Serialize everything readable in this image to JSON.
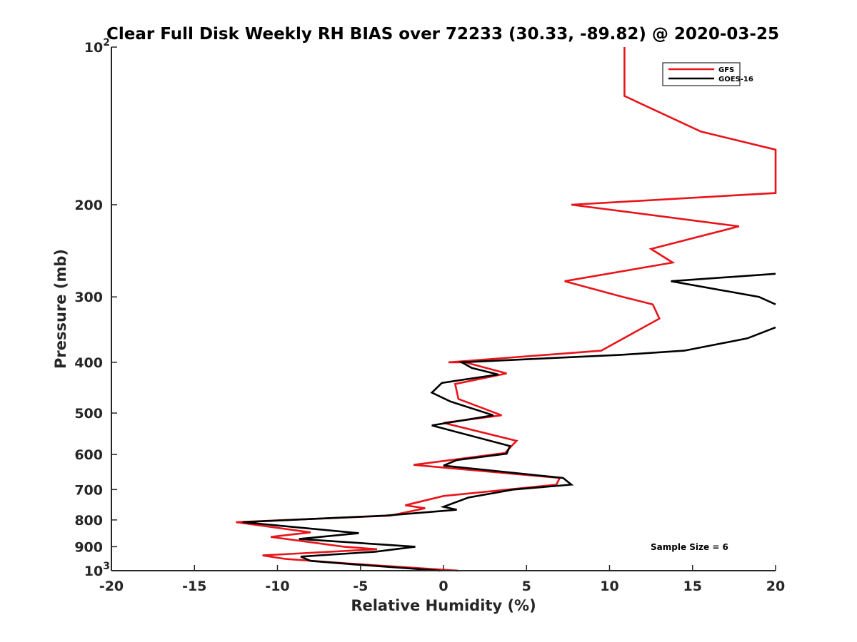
{
  "chart_data": {
    "type": "line",
    "title": "Clear Full Disk Weekly RH BIAS over 72233 (30.33, -89.82) @ 2020-03-25",
    "xlabel": "Relative Humidity (%)",
    "ylabel": "Pressure (mb)",
    "xlim": [
      -20,
      20
    ],
    "ylim": [
      100,
      1000
    ],
    "y_scale": "log",
    "y_reversed": true,
    "x_ticks": [
      "-20",
      "-15",
      "-10",
      "-5",
      "0",
      "5",
      "10",
      "15",
      "20"
    ],
    "y_ticks": [
      {
        "value": 100,
        "label": "10",
        "sup": "2"
      },
      {
        "value": 200,
        "label": "200",
        "sup": ""
      },
      {
        "value": 300,
        "label": "300",
        "sup": ""
      },
      {
        "value": 400,
        "label": "400",
        "sup": ""
      },
      {
        "value": 500,
        "label": "500",
        "sup": ""
      },
      {
        "value": 600,
        "label": "600",
        "sup": ""
      },
      {
        "value": 700,
        "label": "700",
        "sup": ""
      },
      {
        "value": 800,
        "label": "800",
        "sup": ""
      },
      {
        "value": 900,
        "label": "900",
        "sup": ""
      },
      {
        "value": 1000,
        "label": "10",
        "sup": "3"
      }
    ],
    "legend_position": "top-right",
    "grid": false,
    "annotation": "Sample Size = 6",
    "series": [
      {
        "name": "GFS",
        "color": "#e8141a",
        "points": [
          {
            "x": 0.9,
            "y": 1000
          },
          {
            "x": -5.5,
            "y": 970
          },
          {
            "x": -9.5,
            "y": 950
          },
          {
            "x": -10.9,
            "y": 935
          },
          {
            "x": -4,
            "y": 910
          },
          {
            "x": -6,
            "y": 900
          },
          {
            "x": -10.4,
            "y": 862
          },
          {
            "x": -8,
            "y": 845
          },
          {
            "x": -12.5,
            "y": 808
          },
          {
            "x": -3.2,
            "y": 785
          },
          {
            "x": -1.1,
            "y": 760
          },
          {
            "x": -2.3,
            "y": 750
          },
          {
            "x": 0,
            "y": 720
          },
          {
            "x": 6.8,
            "y": 685
          },
          {
            "x": 7,
            "y": 665
          },
          {
            "x": -1.8,
            "y": 628
          },
          {
            "x": 3.7,
            "y": 596
          },
          {
            "x": 4.4,
            "y": 565
          },
          {
            "x": 0,
            "y": 522
          },
          {
            "x": 3.5,
            "y": 505
          },
          {
            "x": 0.9,
            "y": 470
          },
          {
            "x": 0.7,
            "y": 440
          },
          {
            "x": 3.8,
            "y": 420
          },
          {
            "x": 1.3,
            "y": 400
          },
          {
            "x": 0.3,
            "y": 400
          },
          {
            "x": 9.5,
            "y": 380
          },
          {
            "x": 13,
            "y": 330
          },
          {
            "x": 12.6,
            "y": 310
          },
          {
            "x": 10.8,
            "y": 300
          },
          {
            "x": 7.3,
            "y": 280
          },
          {
            "x": 13.8,
            "y": 258
          },
          {
            "x": 12.5,
            "y": 243
          },
          {
            "x": 17.8,
            "y": 220
          },
          {
            "x": 7.7,
            "y": 200
          },
          {
            "x": 20,
            "y": 190
          },
          {
            "x": 20,
            "y": 157
          },
          {
            "x": 15.5,
            "y": 145
          },
          {
            "x": 10.9,
            "y": 124
          },
          {
            "x": 10.9,
            "y": 100
          }
        ]
      },
      {
        "name": "GOES-16",
        "color": "#000000",
        "points": [
          {
            "x": -0.2,
            "y": 1000
          },
          {
            "x": -5,
            "y": 975
          },
          {
            "x": -8,
            "y": 958
          },
          {
            "x": -8.6,
            "y": 940
          },
          {
            "x": -4.1,
            "y": 920
          },
          {
            "x": -1.7,
            "y": 900
          },
          {
            "x": -8.7,
            "y": 870
          },
          {
            "x": -5.1,
            "y": 848
          },
          {
            "x": -12.1,
            "y": 808
          },
          {
            "x": -3.5,
            "y": 785
          },
          {
            "x": 0.8,
            "y": 765
          },
          {
            "x": 0,
            "y": 755
          },
          {
            "x": 1.5,
            "y": 725
          },
          {
            "x": 4.2,
            "y": 700
          },
          {
            "x": 7.7,
            "y": 685
          },
          {
            "x": 7.2,
            "y": 665
          },
          {
            "x": 0,
            "y": 630
          },
          {
            "x": 0.8,
            "y": 615
          },
          {
            "x": 3.8,
            "y": 598
          },
          {
            "x": 4,
            "y": 578
          },
          {
            "x": -0.7,
            "y": 528
          },
          {
            "x": 3,
            "y": 505
          },
          {
            "x": 0.4,
            "y": 475
          },
          {
            "x": -0.7,
            "y": 457
          },
          {
            "x": -0.1,
            "y": 438
          },
          {
            "x": 3.3,
            "y": 422
          },
          {
            "x": 1.7,
            "y": 410
          },
          {
            "x": 1.1,
            "y": 400
          },
          {
            "x": 10.7,
            "y": 387
          },
          {
            "x": 14.5,
            "y": 380
          },
          {
            "x": 18.3,
            "y": 360
          },
          {
            "x": 20,
            "y": 343
          },
          {
            "x": null,
            "y": null
          },
          {
            "x": 20,
            "y": 310
          },
          {
            "x": 19,
            "y": 300
          },
          {
            "x": 13.7,
            "y": 280
          },
          {
            "x": 20,
            "y": 271
          }
        ]
      }
    ]
  }
}
